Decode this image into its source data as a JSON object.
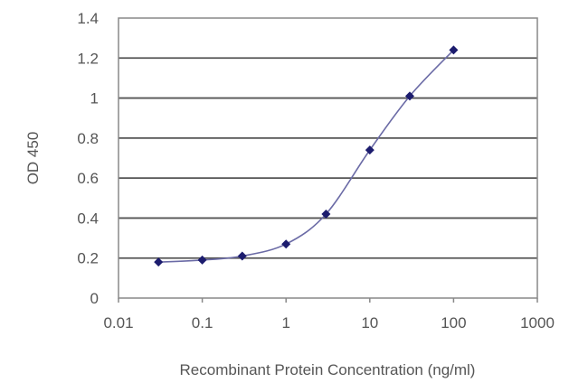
{
  "chart_data": {
    "type": "line",
    "title": "",
    "xlabel": "Recombinant Protein Concentration (ng/ml)",
    "ylabel": "OD 450",
    "xscale": "log",
    "xlim": [
      0.01,
      1000
    ],
    "ylim": [
      0,
      1.4
    ],
    "xticks": [
      "0.01",
      "0.1",
      "1",
      "10",
      "100",
      "1000"
    ],
    "xtick_values": [
      0.01,
      0.1,
      1,
      10,
      100,
      1000
    ],
    "yticks": [
      "0",
      "0.2",
      "0.4",
      "0.6",
      "0.8",
      "1",
      "1.2",
      "1.4"
    ],
    "ytick_values": [
      0,
      0.2,
      0.4,
      0.6,
      0.8,
      1.0,
      1.2,
      1.4
    ],
    "grid": "horizontal",
    "legend": "none",
    "series": [
      {
        "x": [
          0.03,
          0.1,
          0.3,
          1,
          3,
          10,
          30,
          100
        ],
        "y": [
          0.18,
          0.19,
          0.21,
          0.27,
          0.42,
          0.74,
          1.01,
          1.24
        ],
        "marker": "diamond",
        "marker_color": "#1c1c6e",
        "line_color": "#6b6ba6",
        "smooth": true
      }
    ]
  }
}
